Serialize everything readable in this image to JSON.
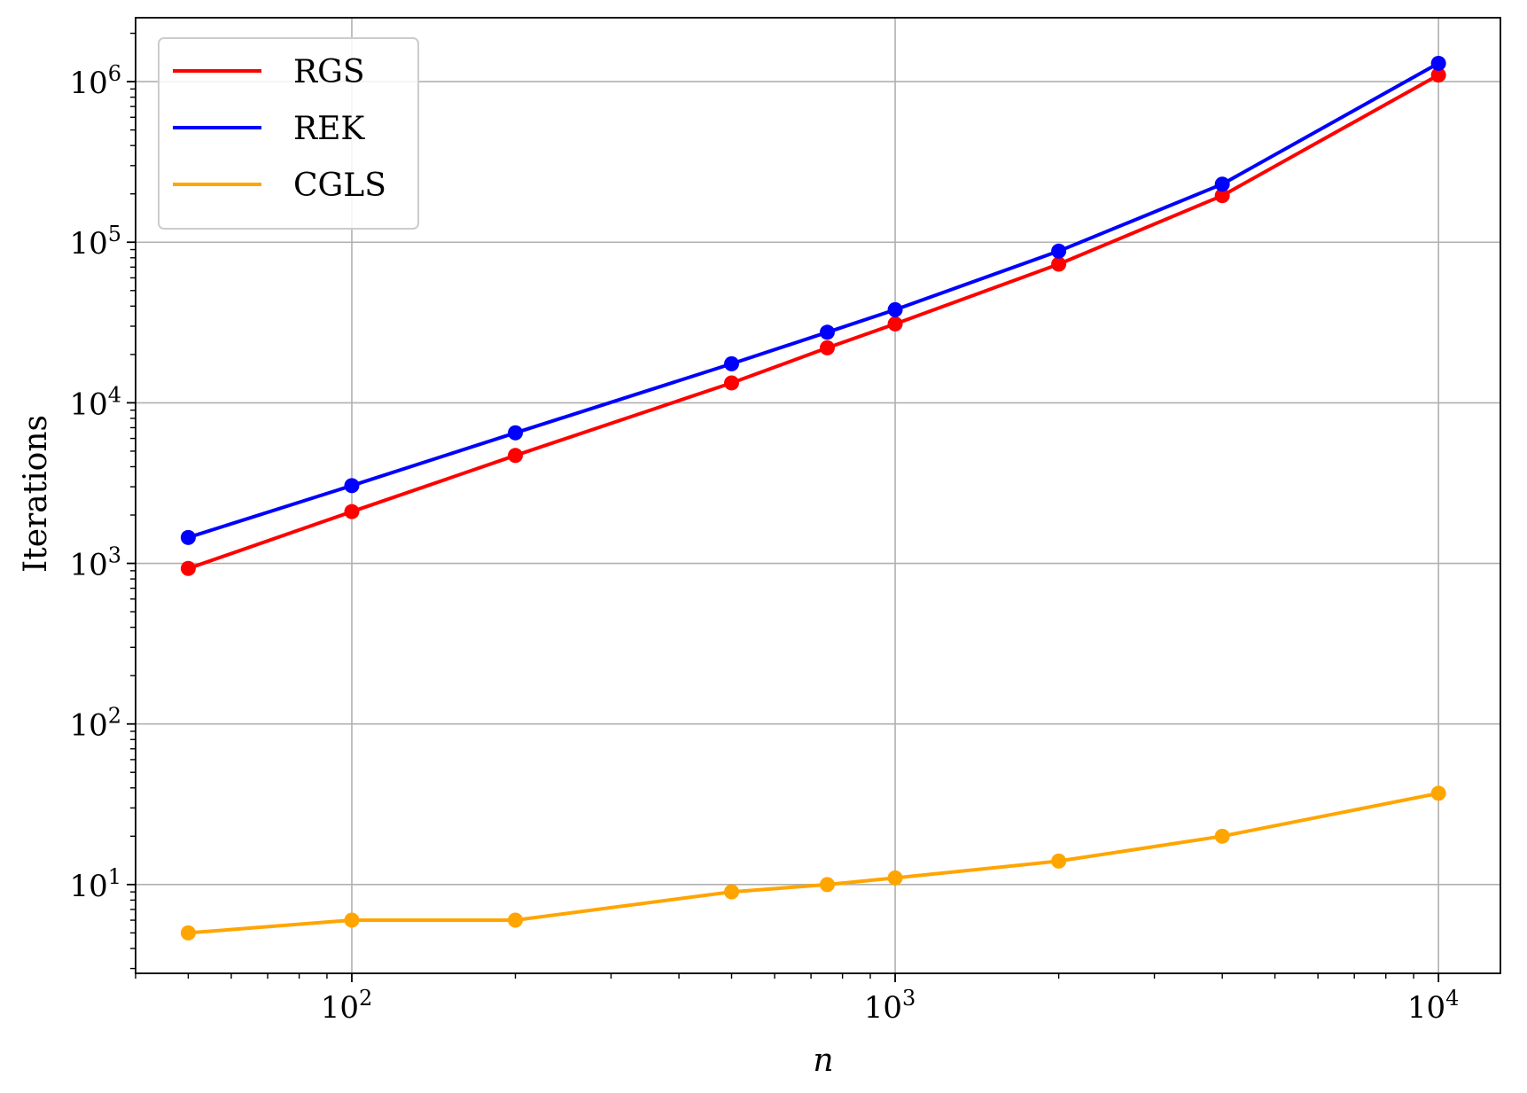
{
  "chart_data": {
    "type": "line",
    "xlabel": "n",
    "ylabel": "Iterations",
    "xscale": "log",
    "yscale": "log",
    "xlim": [
      40,
      13000
    ],
    "ylim": [
      2.8,
      2500000
    ],
    "grid": "on",
    "legend_placement": "top-left",
    "x": [
      50,
      100,
      200,
      500,
      750,
      1000,
      2000,
      4000,
      10000
    ],
    "xticks": [
      {
        "value": 100,
        "base": "10",
        "exp": "2"
      },
      {
        "value": 1000,
        "base": "10",
        "exp": "3"
      },
      {
        "value": 10000,
        "base": "10",
        "exp": "4"
      }
    ],
    "yticks": [
      {
        "value": 10,
        "base": "10",
        "exp": "1"
      },
      {
        "value": 100,
        "base": "10",
        "exp": "2"
      },
      {
        "value": 1000,
        "base": "10",
        "exp": "3"
      },
      {
        "value": 10000,
        "base": "10",
        "exp": "4"
      },
      {
        "value": 100000,
        "base": "10",
        "exp": "5"
      },
      {
        "value": 1000000,
        "base": "10",
        "exp": "6"
      }
    ],
    "series": [
      {
        "name": "RGS",
        "color": "#ff0000",
        "values": [
          930,
          2100,
          4700,
          13300,
          22000,
          31000,
          73000,
          195000,
          1100000
        ]
      },
      {
        "name": "REK",
        "color": "#0000ff",
        "values": [
          1450,
          3050,
          6500,
          17500,
          27500,
          38000,
          88000,
          230000,
          1300000
        ]
      },
      {
        "name": "CGLS",
        "color": "#ffa500",
        "values": [
          5,
          6,
          6,
          9,
          10,
          11,
          14,
          20,
          37
        ]
      }
    ]
  }
}
